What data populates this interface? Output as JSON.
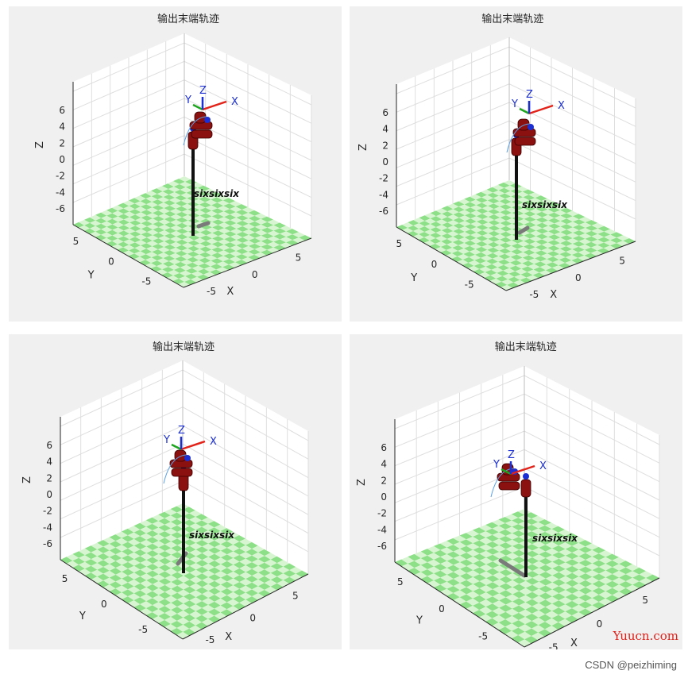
{
  "colors": {
    "figure_bg": "#f0f0f0",
    "axes_bg": "#ffffff",
    "grid": "#dedede",
    "floor_light": "#d8f5d2",
    "floor_dark": "#8ee088",
    "link": "#8b1010",
    "joint_blue": "#1b2fd2",
    "frame_x": "#e2231a",
    "frame_y": "#1ea51e",
    "frame_z": "#1b2fd2",
    "trajectory": "#5aa0e6",
    "shadow": "#7a7a7a",
    "text": "#262626"
  },
  "chart_data": [
    {
      "type": "3d-plot",
      "title": "输出末端轨迹",
      "xlabel": "X",
      "ylabel": "Y",
      "zlabel": "Z",
      "xticks": [
        "-5",
        "0",
        "5"
      ],
      "yticks": [
        "-5",
        "0",
        "5"
      ],
      "zticks": [
        "-6",
        "-4",
        "-2",
        "0",
        "2",
        "4",
        "6"
      ],
      "robot_name": "sixsixsix",
      "frame_labels": [
        "X",
        "Y",
        "Z"
      ],
      "floor": "checkerboard",
      "grid": true
    },
    {
      "type": "3d-plot",
      "title": "输出末端轨迹",
      "xlabel": "X",
      "ylabel": "Y",
      "zlabel": "Z",
      "xticks": [
        "-5",
        "0",
        "5"
      ],
      "yticks": [
        "-5",
        "0",
        "5"
      ],
      "zticks": [
        "-6",
        "-4",
        "-2",
        "0",
        "2",
        "4",
        "6"
      ],
      "robot_name": "sixsixsix",
      "frame_labels": [
        "X",
        "Y",
        "Z"
      ],
      "floor": "checkerboard",
      "grid": true
    },
    {
      "type": "3d-plot",
      "title": "输出末端轨迹",
      "xlabel": "X",
      "ylabel": "Y",
      "zlabel": "Z",
      "xticks": [
        "-5",
        "0",
        "5"
      ],
      "yticks": [
        "-5",
        "0",
        "5"
      ],
      "zticks": [
        "-6",
        "-4",
        "-2",
        "0",
        "2",
        "4",
        "6"
      ],
      "robot_name": "sixsixsix",
      "frame_labels": [
        "X",
        "Y",
        "Z"
      ],
      "floor": "checkerboard",
      "grid": true
    },
    {
      "type": "3d-plot",
      "title": "输出末端轨迹",
      "xlabel": "X",
      "ylabel": "Y",
      "zlabel": "Z",
      "xticks": [
        "-5",
        "0",
        "5"
      ],
      "yticks": [
        "-5",
        "0",
        "5"
      ],
      "zticks": [
        "-6",
        "-4",
        "-2",
        "0",
        "2",
        "4",
        "6"
      ],
      "robot_name": "sixsixsix",
      "frame_labels": [
        "X",
        "Y",
        "Z"
      ],
      "floor": "checkerboard",
      "grid": true
    }
  ],
  "watermark": {
    "site": "Yuucn.com",
    "credit": "CSDN @peizhiming"
  }
}
